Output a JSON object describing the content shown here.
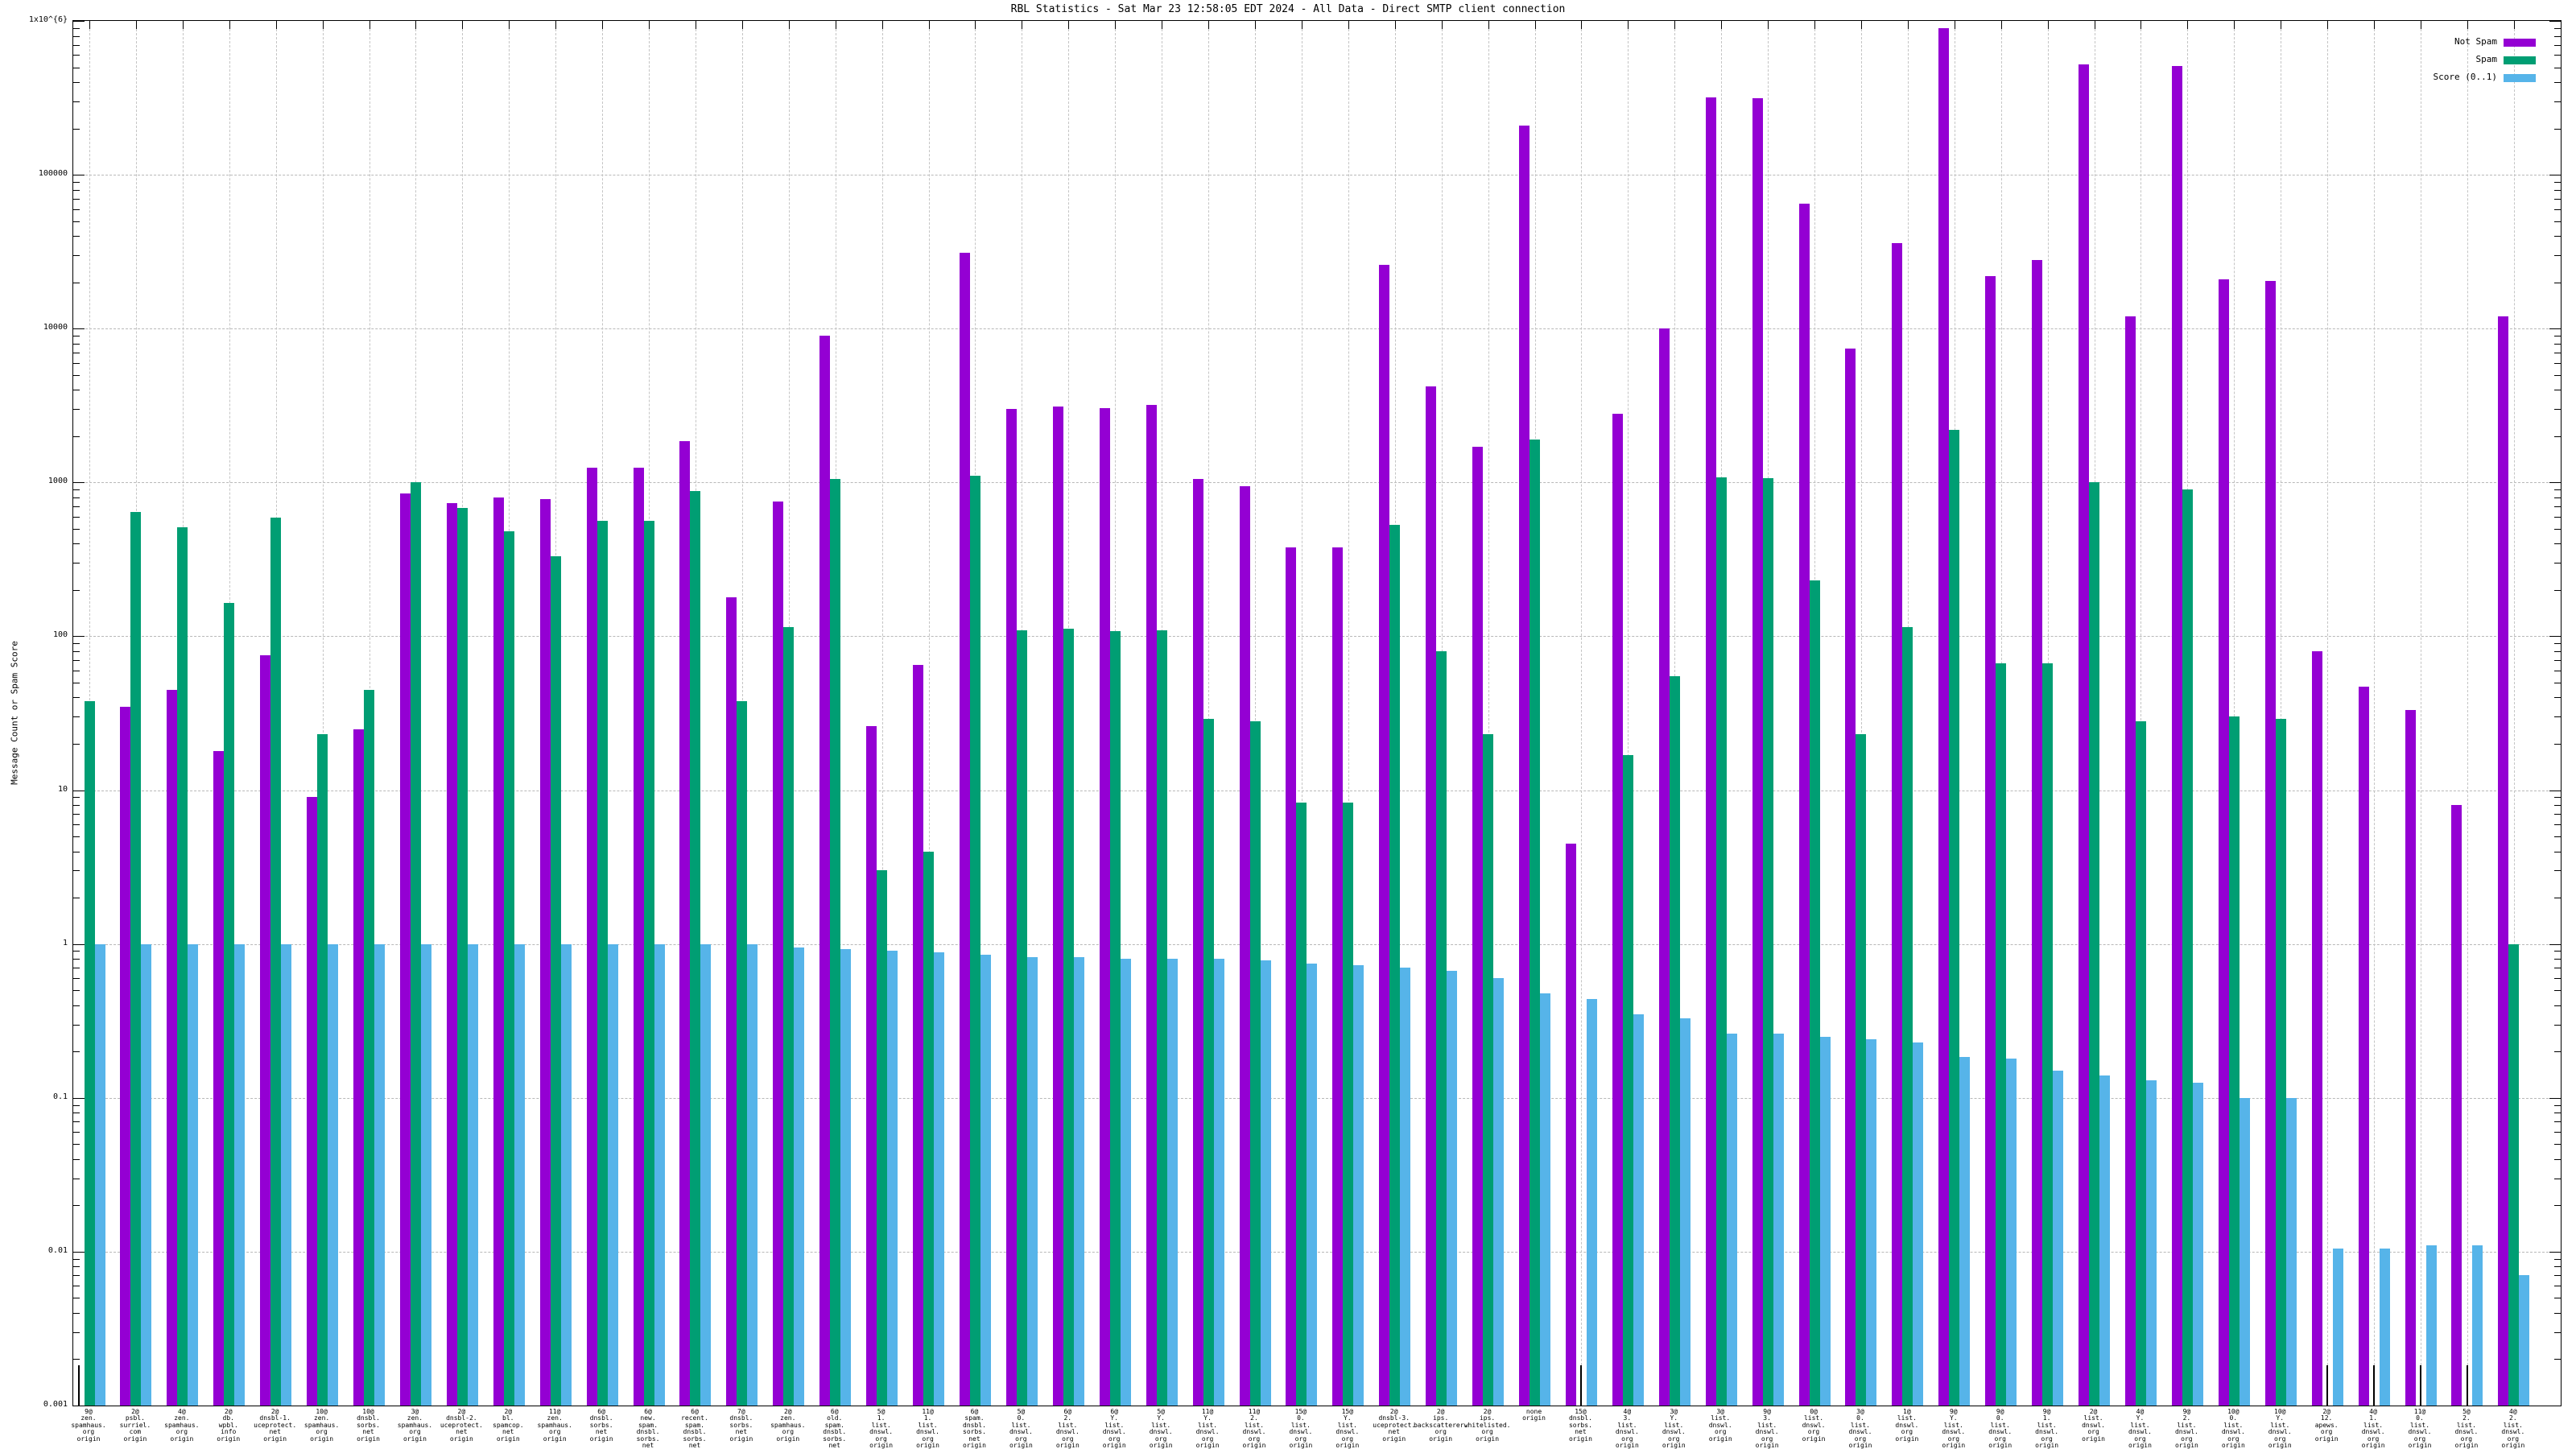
{
  "title": "RBL Statistics - Sat Mar 23 12:58:05 EDT 2024 - All Data - Direct SMTP client connection",
  "colors": {
    "not_spam": "#9400d3",
    "spam": "#009e73",
    "score": "#56b4e9",
    "axis": "#000000",
    "grid": "#bbbbbb",
    "background": "#ffffff"
  },
  "chart_data": {
    "type": "bar",
    "scale_y": "log10",
    "title": "RBL Statistics - Sat Mar 23 12:58:05 EDT 2024 - All Data - Direct SMTP client connection",
    "xlabel": "",
    "ylabel": "Message Count or Spam Score",
    "ylim": [
      0.001,
      1000000
    ],
    "grid": true,
    "legend_position": "top-right-inside",
    "yticks": [
      {
        "label": "1x10^{6}",
        "value": 1000000
      },
      {
        "label": "100000",
        "value": 100000
      },
      {
        "label": "10000",
        "value": 10000
      },
      {
        "label": "1000",
        "value": 1000
      },
      {
        "label": "100",
        "value": 100
      },
      {
        "label": "10",
        "value": 10
      },
      {
        "label": "1",
        "value": 1
      },
      {
        "label": "0.1",
        "value": 0.1
      },
      {
        "label": "0.01",
        "value": 0.01
      },
      {
        "label": "0.001",
        "value": 0.001
      }
    ],
    "series_meta": [
      {
        "name": "Not Spam",
        "key": "not_spam",
        "color": "#9400d3"
      },
      {
        "name": "Spam",
        "key": "spam",
        "color": "#009e73"
      },
      {
        "name": "Score (0..1)",
        "key": "score",
        "color": "#56b4e9"
      }
    ],
    "groups": [
      {
        "label_lines": [
          "9@",
          "zen.",
          "spamhaus.",
          "org",
          "origin"
        ],
        "not_spam": 0,
        "spam": 38,
        "score": 1
      },
      {
        "label_lines": [
          "2@",
          "psbl.",
          "surriel.",
          "com",
          "origin"
        ],
        "not_spam": 35,
        "spam": 640,
        "score": 1
      },
      {
        "label_lines": [
          "4@",
          "zen.",
          "spamhaus.",
          "org",
          "origin"
        ],
        "not_spam": 45,
        "spam": 510,
        "score": 1
      },
      {
        "label_lines": [
          "2@",
          "db.",
          "wpbl.",
          "info",
          "origin"
        ],
        "not_spam": 18,
        "spam": 165,
        "score": 1
      },
      {
        "label_lines": [
          "2@",
          "dnsbl-1.",
          "uceprotect.",
          "net",
          "origin"
        ],
        "not_spam": 75,
        "spam": 590,
        "score": 1
      },
      {
        "label_lines": [
          "10@",
          "zen.",
          "spamhaus.",
          "org",
          "origin"
        ],
        "not_spam": 9,
        "spam": 23,
        "score": 1
      },
      {
        "label_lines": [
          "10@",
          "dnsbl.",
          "sorbs.",
          "net",
          "origin"
        ],
        "not_spam": 25,
        "spam": 45,
        "score": 1
      },
      {
        "label_lines": [
          "3@",
          "zen.",
          "spamhaus.",
          "org",
          "origin"
        ],
        "not_spam": 850,
        "spam": 1000,
        "score": 1
      },
      {
        "label_lines": [
          "2@",
          "dnsbl-2.",
          "uceprotect.",
          "net",
          "origin"
        ],
        "not_spam": 730,
        "spam": 680,
        "score": 1
      },
      {
        "label_lines": [
          "2@",
          "bl.",
          "spamcop.",
          "net",
          "origin"
        ],
        "not_spam": 800,
        "spam": 480,
        "score": 1
      },
      {
        "label_lines": [
          "11@",
          "zen.",
          "spamhaus.",
          "org",
          "origin"
        ],
        "not_spam": 780,
        "spam": 330,
        "score": 1
      },
      {
        "label_lines": [
          "6@",
          "dnsbl.",
          "sorbs.",
          "net",
          "origin"
        ],
        "not_spam": 1250,
        "spam": 560,
        "score": 1
      },
      {
        "label_lines": [
          "6@",
          "new.",
          "spam.",
          "dnsbl.",
          "sorbs.",
          "net",
          "origin"
        ],
        "not_spam": 1250,
        "spam": 560,
        "score": 1
      },
      {
        "label_lines": [
          "6@",
          "recent.",
          "spam.",
          "dnsbl.",
          "sorbs.",
          "net",
          "origin"
        ],
        "not_spam": 1850,
        "spam": 880,
        "score": 1
      },
      {
        "label_lines": [
          "7@",
          "dnsbl.",
          "sorbs.",
          "net",
          "origin"
        ],
        "not_spam": 180,
        "spam": 38,
        "score": 1
      },
      {
        "label_lines": [
          "2@",
          "zen.",
          "spamhaus.",
          "org",
          "origin"
        ],
        "not_spam": 750,
        "spam": 115,
        "score": 0.95
      },
      {
        "label_lines": [
          "6@",
          "old.",
          "spam.",
          "dnsbl.",
          "sorbs.",
          "net",
          "origin"
        ],
        "not_spam": 9000,
        "spam": 1050,
        "score": 0.93
      },
      {
        "label_lines": [
          "5@",
          "1.",
          "list.",
          "dnswl.",
          "org",
          "origin"
        ],
        "not_spam": 26,
        "spam": 3,
        "score": 0.9
      },
      {
        "label_lines": [
          "11@",
          "1.",
          "list.",
          "dnswl.",
          "org",
          "origin"
        ],
        "not_spam": 65,
        "spam": 4,
        "score": 0.88
      },
      {
        "label_lines": [
          "6@",
          "spam.",
          "dnsbl.",
          "sorbs.",
          "net",
          "origin"
        ],
        "not_spam": 31000,
        "spam": 1100,
        "score": 0.85
      },
      {
        "label_lines": [
          "5@",
          "0.",
          "list.",
          "dnswl.",
          "org",
          "origin"
        ],
        "not_spam": 3000,
        "spam": 110,
        "score": 0.82
      },
      {
        "label_lines": [
          "6@",
          "2.",
          "list.",
          "dnswl.",
          "org",
          "origin"
        ],
        "not_spam": 3100,
        "spam": 112,
        "score": 0.82
      },
      {
        "label_lines": [
          "6@",
          "Y.",
          "list.",
          "dnswl.",
          "org",
          "origin"
        ],
        "not_spam": 3050,
        "spam": 108,
        "score": 0.8
      },
      {
        "label_lines": [
          "5@",
          "Y.",
          "list.",
          "dnswl.",
          "org",
          "origin"
        ],
        "not_spam": 3200,
        "spam": 110,
        "score": 0.8
      },
      {
        "label_lines": [
          "11@",
          "Y.",
          "list.",
          "dnswl.",
          "org",
          "origin"
        ],
        "not_spam": 1050,
        "spam": 29,
        "score": 0.8
      },
      {
        "label_lines": [
          "11@",
          "2.",
          "list.",
          "dnswl.",
          "org",
          "origin"
        ],
        "not_spam": 950,
        "spam": 28,
        "score": 0.78
      },
      {
        "label_lines": [
          "15@",
          "0.",
          "list.",
          "dnswl.",
          "org",
          "origin"
        ],
        "not_spam": 380,
        "spam": 8.3,
        "score": 0.75
      },
      {
        "label_lines": [
          "15@",
          "Y.",
          "list.",
          "dnswl.",
          "org",
          "origin"
        ],
        "not_spam": 380,
        "spam": 8.3,
        "score": 0.73
      },
      {
        "label_lines": [
          "2@",
          "dnsbl-3.",
          "uceprotect.",
          "net",
          "origin"
        ],
        "not_spam": 26000,
        "spam": 530,
        "score": 0.7
      },
      {
        "label_lines": [
          "2@",
          "ips.",
          "backscatterer.",
          "org",
          "origin"
        ],
        "not_spam": 4200,
        "spam": 80,
        "score": 0.67
      },
      {
        "label_lines": [
          "2@",
          "ips.",
          "whitelisted.",
          "org",
          "origin"
        ],
        "not_spam": 1700,
        "spam": 23,
        "score": 0.6
      },
      {
        "label_lines": [
          "none",
          "origin"
        ],
        "not_spam": 210000,
        "spam": 1900,
        "score": 0.48
      },
      {
        "label_lines": [
          "15@",
          "dnsbl.",
          "sorbs.",
          "net",
          "origin"
        ],
        "not_spam": 4.5,
        "spam": 0,
        "score": 0.44
      },
      {
        "label_lines": [
          "4@",
          "3.",
          "list.",
          "dnswl.",
          "org",
          "origin"
        ],
        "not_spam": 2800,
        "spam": 17,
        "score": 0.35
      },
      {
        "label_lines": [
          "3@",
          "Y.",
          "list.",
          "dnswl.",
          "org",
          "origin"
        ],
        "not_spam": 10000,
        "spam": 55,
        "score": 0.33
      },
      {
        "label_lines": [
          "3@",
          "list.",
          "dnswl.",
          "org",
          "origin"
        ],
        "not_spam": 320000,
        "spam": 1080,
        "score": 0.26
      },
      {
        "label_lines": [
          "9@",
          "3.",
          "list.",
          "dnswl.",
          "org",
          "origin"
        ],
        "not_spam": 315000,
        "spam": 1060,
        "score": 0.26
      },
      {
        "label_lines": [
          "0@",
          "list.",
          "dnswl.",
          "org",
          "origin"
        ],
        "not_spam": 65000,
        "spam": 230,
        "score": 0.25
      },
      {
        "label_lines": [
          "3@",
          "0.",
          "list.",
          "dnswl.",
          "org",
          "origin"
        ],
        "not_spam": 7400,
        "spam": 23,
        "score": 0.24
      },
      {
        "label_lines": [
          "1@",
          "list.",
          "dnswl.",
          "org",
          "origin"
        ],
        "not_spam": 36000,
        "spam": 115,
        "score": 0.23
      },
      {
        "label_lines": [
          "9@",
          "Y.",
          "list.",
          "dnswl.",
          "org",
          "origin"
        ],
        "not_spam": 900000,
        "spam": 2200,
        "score": 0.185
      },
      {
        "label_lines": [
          "9@",
          "0.",
          "list.",
          "dnswl.",
          "org",
          "origin"
        ],
        "not_spam": 22000,
        "spam": 67,
        "score": 0.18
      },
      {
        "label_lines": [
          "9@",
          "1.",
          "list.",
          "dnswl.",
          "org",
          "origin"
        ],
        "not_spam": 28000,
        "spam": 67,
        "score": 0.15
      },
      {
        "label_lines": [
          "2@",
          "list.",
          "dnswl.",
          "org",
          "origin"
        ],
        "not_spam": 520000,
        "spam": 1000,
        "score": 0.14
      },
      {
        "label_lines": [
          "4@",
          "Y.",
          "list.",
          "dnswl.",
          "org",
          "origin"
        ],
        "not_spam": 12000,
        "spam": 28,
        "score": 0.13
      },
      {
        "label_lines": [
          "9@",
          "2.",
          "list.",
          "dnswl.",
          "org",
          "origin"
        ],
        "not_spam": 510000,
        "spam": 900,
        "score": 0.125
      },
      {
        "label_lines": [
          "10@",
          "0.",
          "list.",
          "dnswl.",
          "org",
          "origin"
        ],
        "not_spam": 21000,
        "spam": 30,
        "score": 0.1
      },
      {
        "label_lines": [
          "10@",
          "Y.",
          "list.",
          "dnswl.",
          "org",
          "origin"
        ],
        "not_spam": 20500,
        "spam": 29,
        "score": 0.1
      },
      {
        "label_lines": [
          "2@",
          "12.",
          "apews.",
          "org",
          "origin"
        ],
        "not_spam": 80,
        "spam": 0,
        "score": 0.0105
      },
      {
        "label_lines": [
          "4@",
          "1.",
          "list.",
          "dnswl.",
          "org",
          "origin"
        ],
        "not_spam": 47,
        "spam": 0,
        "score": 0.0105
      },
      {
        "label_lines": [
          "11@",
          "0.",
          "list.",
          "dnswl.",
          "org",
          "origin"
        ],
        "not_spam": 33,
        "spam": 0,
        "score": 0.011
      },
      {
        "label_lines": [
          "5@",
          "2.",
          "list.",
          "dnswl.",
          "org",
          "origin"
        ],
        "not_spam": 8,
        "spam": 0,
        "score": 0.011
      },
      {
        "label_lines": [
          "4@",
          "2.",
          "list.",
          "dnswl.",
          "org",
          "origin"
        ],
        "not_spam": 12000,
        "spam": 1,
        "score": 0.007
      }
    ]
  }
}
